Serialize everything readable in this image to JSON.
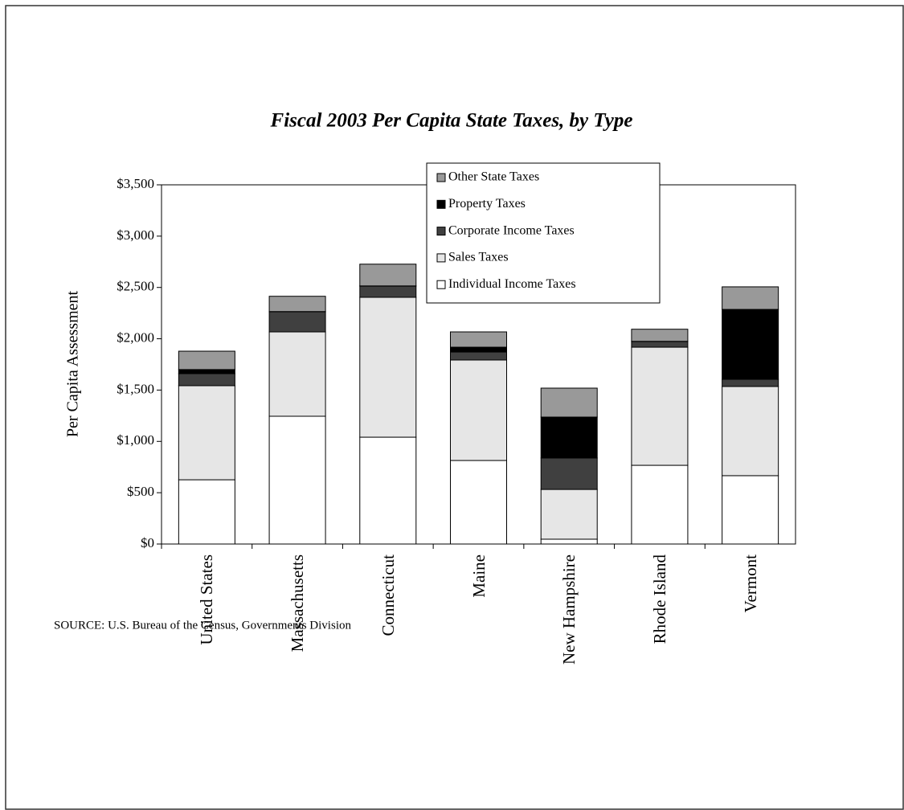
{
  "chart_data": {
    "type": "stacked_bar",
    "title": "Fiscal 2003 Per Capita State Taxes, by Type",
    "y_label": "Per Capita Assessment",
    "source": "SOURCE:  U.S. Bureau of the Census, Governments Division",
    "categories": [
      "United States",
      "Massachusetts",
      "Connecticut",
      "Maine",
      "New Hampshire",
      "Rhode Island",
      "Vermont"
    ],
    "series": [
      {
        "name": "Individual Income Taxes",
        "color": "#ffffff",
        "values": [
          626,
          1245,
          1041,
          814,
          47,
          767,
          666
        ]
      },
      {
        "name": "Sales Taxes",
        "color": "#e6e6e6",
        "values": [
          917,
          822,
          1363,
          979,
          485,
          1151,
          869
        ]
      },
      {
        "name": "Corporate Income Taxes",
        "color": "#404040",
        "values": [
          117,
          196,
          109,
          78,
          306,
          55,
          70
        ]
      },
      {
        "name": "Property Taxes",
        "color": "#000000",
        "values": [
          40,
          2,
          2,
          47,
          399,
          2,
          681
        ]
      },
      {
        "name": "Other State Taxes",
        "color": "#999999",
        "values": [
          179,
          149,
          212,
          149,
          282,
          118,
          220
        ]
      }
    ],
    "ylim": [
      0,
      3500
    ],
    "yticks": [
      {
        "value": 0,
        "label": "$0"
      },
      {
        "value": 500,
        "label": "$500"
      },
      {
        "value": 1000,
        "label": "$1,000"
      },
      {
        "value": 1500,
        "label": "$1,500"
      },
      {
        "value": 2000,
        "label": "$2,000"
      },
      {
        "value": 2500,
        "label": "$2,500"
      },
      {
        "value": 3000,
        "label": "$3,000"
      },
      {
        "value": 3500,
        "label": "$3,500"
      }
    ],
    "grid": false,
    "legend": "upper center"
  }
}
